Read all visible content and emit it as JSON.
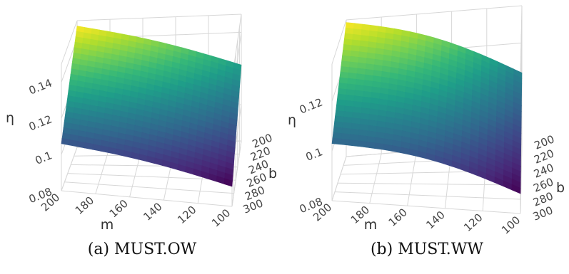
{
  "chart_data": [
    {
      "type": "surface",
      "caption": "(a) MUST.OW",
      "xlabel": "m",
      "ylabel": "b",
      "zlabel": "η",
      "m_ticks": [
        "200",
        "180",
        "160",
        "140",
        "120",
        "100"
      ],
      "b_ticks": [
        "200",
        "220",
        "240",
        "260",
        "280",
        "300"
      ],
      "z_ticks": [
        "0.08",
        "0.1",
        "0.12",
        "0.14"
      ],
      "m_range": [
        100,
        200
      ],
      "b_range": [
        200,
        300
      ],
      "z_range": [
        0.08,
        0.15
      ],
      "corners": [
        {
          "m": 200,
          "b": 200,
          "eta": 0.147
        },
        {
          "m": 100,
          "b": 200,
          "eta": 0.122
        },
        {
          "m": 100,
          "b": 300,
          "eta": 0.091
        },
        {
          "m": 200,
          "b": 300,
          "eta": 0.106
        }
      ],
      "colormap": "viridis"
    },
    {
      "type": "surface",
      "caption": "(b) MUST.WW",
      "xlabel": "m",
      "ylabel": "b",
      "zlabel": "η",
      "m_ticks": [
        "200",
        "180",
        "160",
        "140",
        "120",
        "100"
      ],
      "b_ticks": [
        "200",
        "220",
        "240",
        "260",
        "280",
        "300"
      ],
      "z_ticks": [
        "0.08",
        "0.1",
        "0.12"
      ],
      "m_range": [
        100,
        200
      ],
      "b_range": [
        200,
        300
      ],
      "z_range": [
        0.08,
        0.135
      ],
      "corners": [
        {
          "m": 200,
          "b": 200,
          "eta": 0.134
        },
        {
          "m": 100,
          "b": 200,
          "eta": 0.108
        },
        {
          "m": 100,
          "b": 300,
          "eta": 0.088
        },
        {
          "m": 200,
          "b": 300,
          "eta": 0.103
        }
      ],
      "colormap": "viridis"
    }
  ]
}
